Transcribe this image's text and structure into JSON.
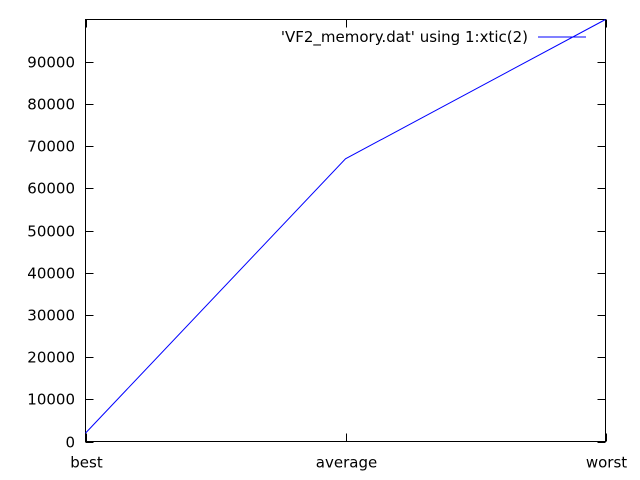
{
  "chart_data": {
    "type": "line",
    "categories": [
      "best",
      "average",
      "worst"
    ],
    "series": [
      {
        "name": "'VF2_memory.dat' using 1:xtic(2)",
        "values": [
          2000,
          67000,
          100000
        ],
        "color": "#0000ff"
      }
    ],
    "ylim": [
      0,
      100000
    ],
    "yticks": [
      0,
      10000,
      20000,
      30000,
      40000,
      50000,
      60000,
      70000,
      80000,
      90000
    ],
    "ytick_labels": [
      "0",
      "10000",
      "20000",
      "30000",
      "40000",
      "50000",
      "60000",
      "70000",
      "80000",
      "90000"
    ],
    "grid": false,
    "legend_position": "top-right"
  }
}
